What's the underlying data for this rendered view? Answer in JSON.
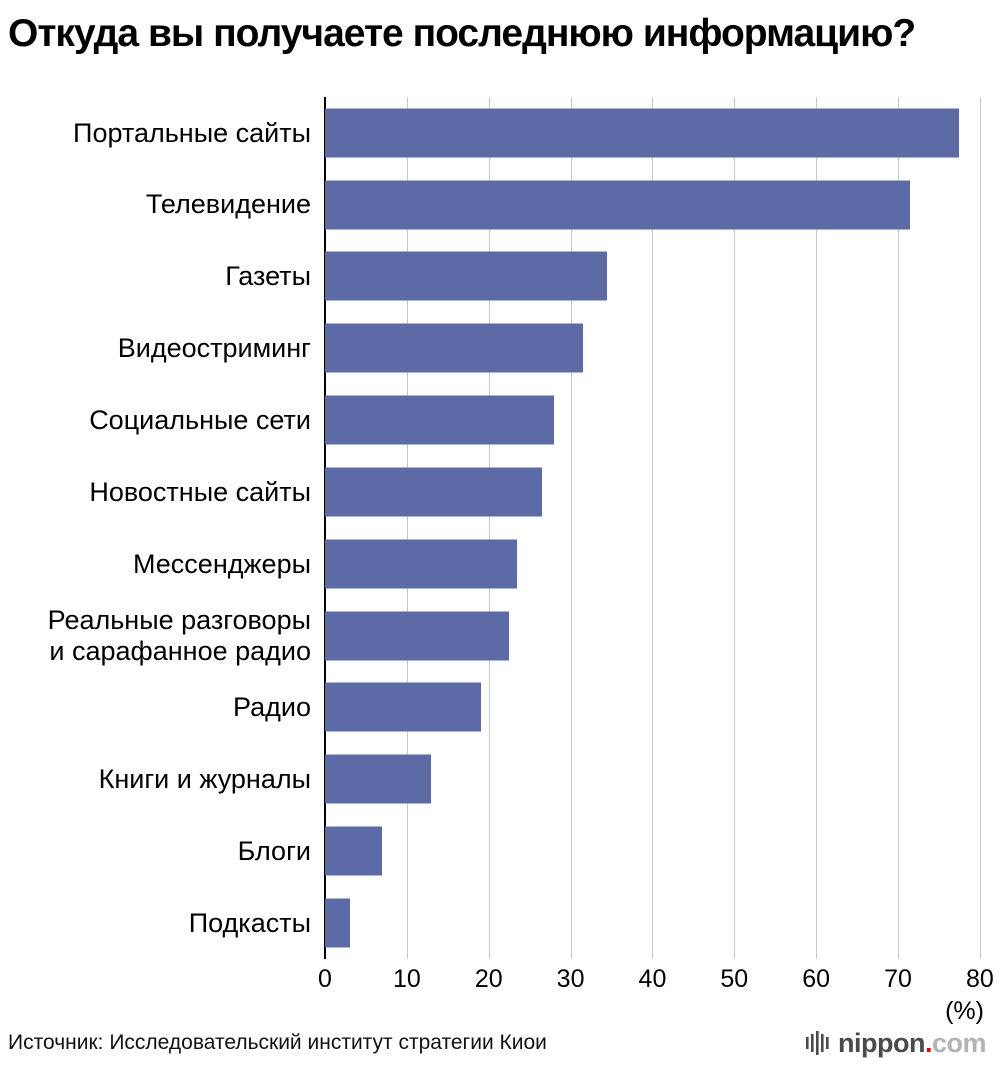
{
  "title": "Откуда вы получаете последнюю информацию?",
  "chart_data": {
    "type": "bar",
    "orientation": "horizontal",
    "title": "Откуда вы получаете последнюю информацию?",
    "categories": [
      "Портальные сайты",
      "Телевидение",
      "Газеты",
      "Видеостриминг",
      "Социальные сети",
      "Новостные сайты",
      "Мессенджеры",
      "Реальные разговоры\nи сарафанное радио",
      "Радио",
      "Книги и журналы",
      "Блоги",
      "Подкасты"
    ],
    "values": [
      77.5,
      71.5,
      34.5,
      31.5,
      28,
      26.5,
      23.5,
      22.5,
      19,
      13,
      7,
      3
    ],
    "x_ticks": [
      0,
      10,
      20,
      30,
      40,
      50,
      60,
      70,
      80
    ],
    "xlim": [
      0,
      80.5
    ],
    "unit_label": "(%)",
    "bar_color": "#5c6ba6",
    "grid": true,
    "legend": "none"
  },
  "footer": {
    "source": "Источник: Исследовательский институт стратегии Киои",
    "logo": {
      "prefix": "nippon",
      "dot": ".",
      "suffix": "com"
    }
  }
}
